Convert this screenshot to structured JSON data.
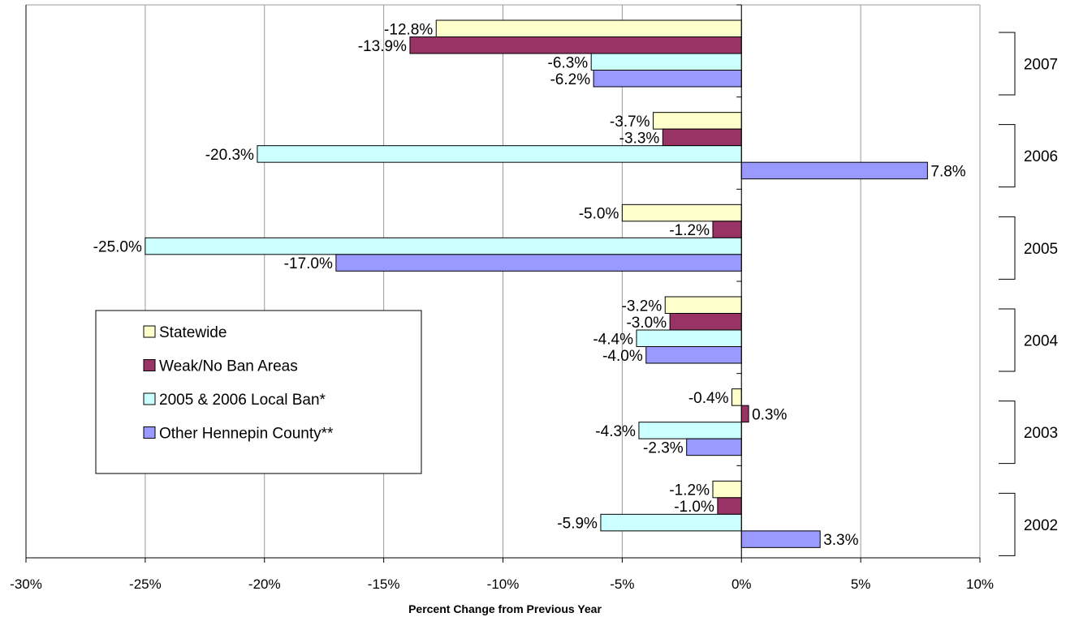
{
  "chart_data": {
    "type": "bar",
    "orientation": "horizontal",
    "title": "",
    "xlabel": "Percent Change from Previous Year",
    "ylabel": "",
    "xlim": [
      -30,
      10
    ],
    "x_ticks": [
      -30,
      -25,
      -20,
      -15,
      -10,
      -5,
      0,
      5,
      10
    ],
    "x_tick_labels": [
      "-30%",
      "-25%",
      "-20%",
      "-15%",
      "-10%",
      "-5%",
      "0%",
      "5%",
      "10%"
    ],
    "grid": true,
    "legend_position": "left",
    "categories": [
      "2007",
      "2006",
      "2005",
      "2004",
      "2003",
      "2002"
    ],
    "series": [
      {
        "name": "Statewide",
        "color": "#FFFFCC",
        "values": [
          -12.8,
          -3.7,
          -5.0,
          -3.2,
          -0.4,
          -1.2
        ],
        "labels": [
          "-12.8%",
          "-3.7%",
          "-5.0%",
          "-3.2%",
          "-0.4%",
          "-1.2%"
        ]
      },
      {
        "name": "Weak/No Ban Areas",
        "color": "#993366",
        "values": [
          -13.9,
          -3.3,
          -1.2,
          -3.0,
          0.3,
          -1.0
        ],
        "labels": [
          "-13.9%",
          "-3.3%",
          "-1.2%",
          "-3.0%",
          "0.3%",
          "-1.0%"
        ]
      },
      {
        "name": "2005 & 2006 Local Ban*",
        "color": "#CCFFFF",
        "values": [
          -6.3,
          -20.3,
          -25.0,
          -4.4,
          -4.3,
          -5.9
        ],
        "labels": [
          "-6.3%",
          "-20.3%",
          "-25.0%",
          "-4.4%",
          "-4.3%",
          "-5.9%"
        ]
      },
      {
        "name": "Other Hennepin County**",
        "color": "#9999FF",
        "values": [
          -6.2,
          7.8,
          -17.0,
          -4.0,
          -2.3,
          3.3
        ],
        "labels": [
          "-6.2%",
          "7.8%",
          "-17.0%",
          "-4.0%",
          "-2.3%",
          "3.3%"
        ]
      }
    ]
  }
}
